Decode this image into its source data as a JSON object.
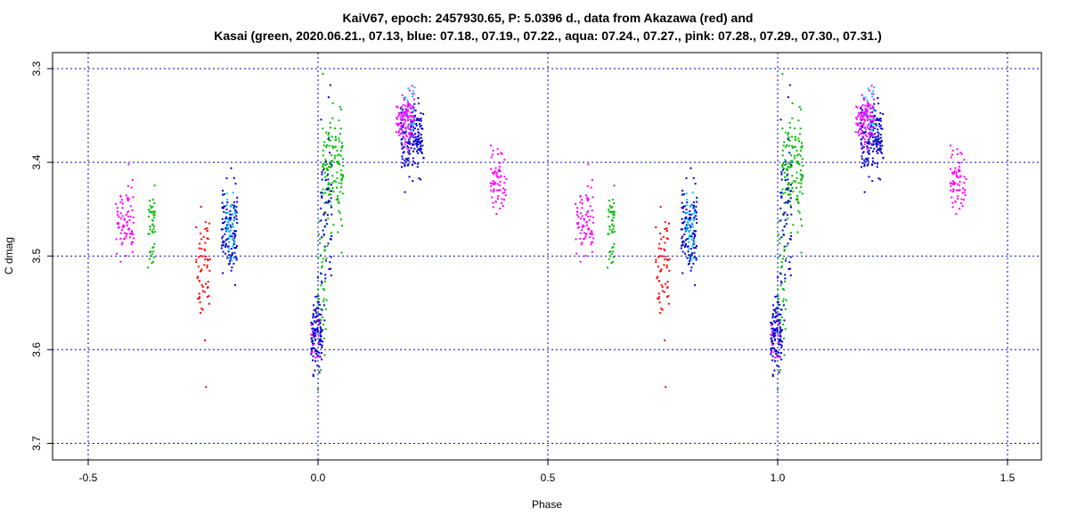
{
  "chart_data": {
    "type": "scatter",
    "title": "KaiV67, epoch: 2457930.65, P: 5.0396 d., data from Akazawa (red) and",
    "subtitle": "Kasai (green, 2020.06.21., 07.13, blue: 07.18., 07.19., 07.22., aqua: 07.24., 07.27., pink: 07.28., 07.29., 07.30., 07.31.)",
    "xlabel": "Phase",
    "ylabel": "C dmag",
    "xlim": [
      -0.6,
      1.6
    ],
    "ylim": [
      3.71,
      3.29
    ],
    "y_reversed": true,
    "x_ticks": [
      -0.5,
      0.0,
      0.5,
      1.0,
      1.5
    ],
    "x_tick_labels": [
      "-0.5",
      "0.0",
      "0.5",
      "1.0",
      "1.5"
    ],
    "y_ticks": [
      3.3,
      3.4,
      3.5,
      3.6,
      3.7
    ],
    "y_tick_labels": [
      "3.3",
      "3.4",
      "3.5",
      "3.6",
      "3.7"
    ],
    "grid": true,
    "grid_color": "#0000cc",
    "phase_repeat": 1.0,
    "series": [
      {
        "name": "Akazawa (red)",
        "color": "#ff0000",
        "clusters": [
          {
            "x_range": [
              -0.265,
              -0.235
            ],
            "y_mean": 3.515,
            "y_sd": 0.028,
            "n": 60
          },
          {
            "x_range": [
              -0.245,
              -0.24
            ],
            "y_mean": 3.64,
            "y_sd": 0.0,
            "n": 1
          },
          {
            "x_range": [
              -0.25,
              -0.245
            ],
            "y_mean": 3.59,
            "y_sd": 0.0,
            "n": 1
          }
        ]
      },
      {
        "name": "green",
        "color": "#00bb00",
        "clusters": [
          {
            "x_range": [
              -0.37,
              -0.355
            ],
            "y_mean": 3.47,
            "y_sd": 0.02,
            "n": 45
          },
          {
            "x_range": [
              0.01,
              0.055
            ],
            "y_mean": 3.41,
            "y_sd": 0.03,
            "n": 140
          },
          {
            "x_range": [
              0.0,
              0.02
            ],
            "y_mean": 3.52,
            "y_sd": 0.045,
            "n": 40
          }
        ]
      },
      {
        "name": "blue",
        "color": "#0000cc",
        "clusters": [
          {
            "x_range": [
              -0.21,
              -0.175
            ],
            "y_mean": 3.47,
            "y_sd": 0.022,
            "n": 120
          },
          {
            "x_range": [
              -0.015,
              0.01
            ],
            "y_mean": 3.58,
            "y_sd": 0.02,
            "n": 120
          },
          {
            "x_range": [
              0.005,
              0.03
            ],
            "y_mean": 3.45,
            "y_sd": 0.05,
            "n": 60
          },
          {
            "x_range": [
              0.18,
              0.23
            ],
            "y_mean": 3.375,
            "y_sd": 0.018,
            "n": 170
          }
        ]
      },
      {
        "name": "aqua",
        "color": "#00ccff",
        "clusters": [
          {
            "x_range": [
              -0.2,
              -0.18
            ],
            "y_mean": 3.465,
            "y_sd": 0.018,
            "n": 40
          },
          {
            "x_range": [
              0.185,
              0.21
            ],
            "y_mean": 3.345,
            "y_sd": 0.012,
            "n": 30
          }
        ]
      },
      {
        "name": "pink",
        "color": "#ff00ff",
        "clusters": [
          {
            "x_range": [
              -0.44,
              -0.4
            ],
            "y_mean": 3.465,
            "y_sd": 0.022,
            "n": 80
          },
          {
            "x_range": [
              0.17,
              0.21
            ],
            "y_mean": 3.355,
            "y_sd": 0.014,
            "n": 110
          },
          {
            "x_range": [
              0.375,
              0.41
            ],
            "y_mean": 3.415,
            "y_sd": 0.018,
            "n": 70
          },
          {
            "x_range": [
              -0.015,
              0.005
            ],
            "y_mean": 3.59,
            "y_sd": 0.015,
            "n": 15
          }
        ]
      }
    ]
  }
}
